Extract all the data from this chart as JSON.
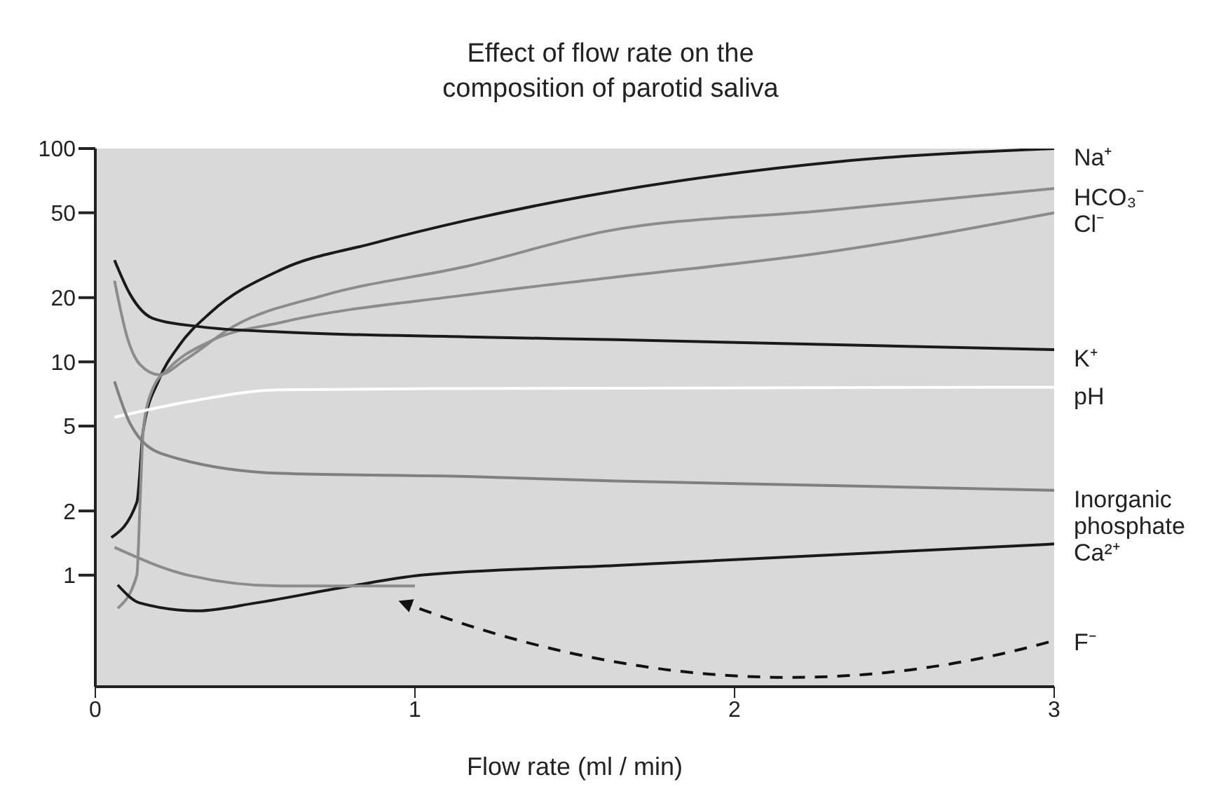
{
  "chart_data": {
    "type": "line",
    "title": "Effect of flow rate on the composition of parotid saliva",
    "xlabel": "Flow rate (ml / min)",
    "xlim": [
      0,
      3
    ],
    "xticks": [
      0,
      1,
      2,
      3
    ],
    "ylim": [
      0.3,
      100
    ],
    "yticks": [
      1,
      2,
      5,
      10,
      20,
      50,
      100
    ],
    "log": "y",
    "series": [
      {
        "name": "Na⁺",
        "color": "#1a1a1a",
        "x": [
          0.05,
          0.13,
          0.15,
          0.2,
          0.26,
          0.36,
          0.58,
          0.87,
          1.16,
          1.54,
          2.33,
          3
        ],
        "values": [
          1.5,
          2.2,
          4.8,
          8.3,
          11.8,
          17,
          27,
          36,
          46,
          60,
          87,
          100
        ]
      },
      {
        "name": "HCO₃⁻",
        "color": "#8c8c8c",
        "x": [
          0.06,
          0.1,
          0.14,
          0.2,
          0.28,
          0.43,
          0.72,
          1.16,
          1.6,
          2.27,
          3
        ],
        "values": [
          24,
          13,
          9.7,
          8.7,
          10.2,
          14.6,
          20.6,
          28,
          41,
          51,
          65
        ]
      },
      {
        "name": "Cl⁻",
        "color": "#8c8c8c",
        "x": [
          0.07,
          0.13,
          0.14,
          0.15,
          0.18,
          0.23,
          0.36,
          0.58,
          1.16,
          1.63,
          2.28,
          3
        ],
        "values": [
          0.7,
          1.0,
          2.2,
          4.8,
          7.5,
          9.3,
          12.5,
          15.3,
          20.6,
          25,
          32.5,
          50
        ]
      },
      {
        "name": "K⁺",
        "color": "#1a1a1a",
        "x": [
          0.06,
          0.11,
          0.18,
          0.33,
          0.58,
          1.16,
          1.63,
          3
        ],
        "values": [
          30,
          20.6,
          16,
          14.6,
          13.8,
          13.1,
          12.7,
          11.4
        ]
      },
      {
        "name": "pH",
        "color": "#ffffff",
        "x": [
          0.06,
          0.29,
          0.58,
          1.16,
          3
        ],
        "values": [
          5.5,
          6.5,
          7.4,
          7.5,
          7.6
        ]
      },
      {
        "name": "Inorganic phosphate",
        "color": "#808080",
        "x": [
          0.06,
          0.11,
          0.21,
          0.58,
          1.16,
          1.63,
          3
        ],
        "values": [
          8.1,
          5.1,
          3.7,
          3.0,
          2.9,
          2.76,
          2.5
        ]
      },
      {
        "name": "Ca²⁺",
        "color": "#1a1a1a",
        "x": [
          0.07,
          0.14,
          0.32,
          0.5,
          0.8,
          1.02,
          1.63,
          3
        ],
        "values": [
          0.9,
          0.74,
          0.68,
          0.74,
          0.89,
          1.0,
          1.11,
          1.4
        ]
      },
      {
        "name": "F⁻",
        "color": "#8c8c8c",
        "x": [
          0.06,
          0.29,
          0.58,
          1.0
        ],
        "values": [
          1.35,
          1.0,
          0.89,
          0.89
        ]
      }
    ]
  }
}
